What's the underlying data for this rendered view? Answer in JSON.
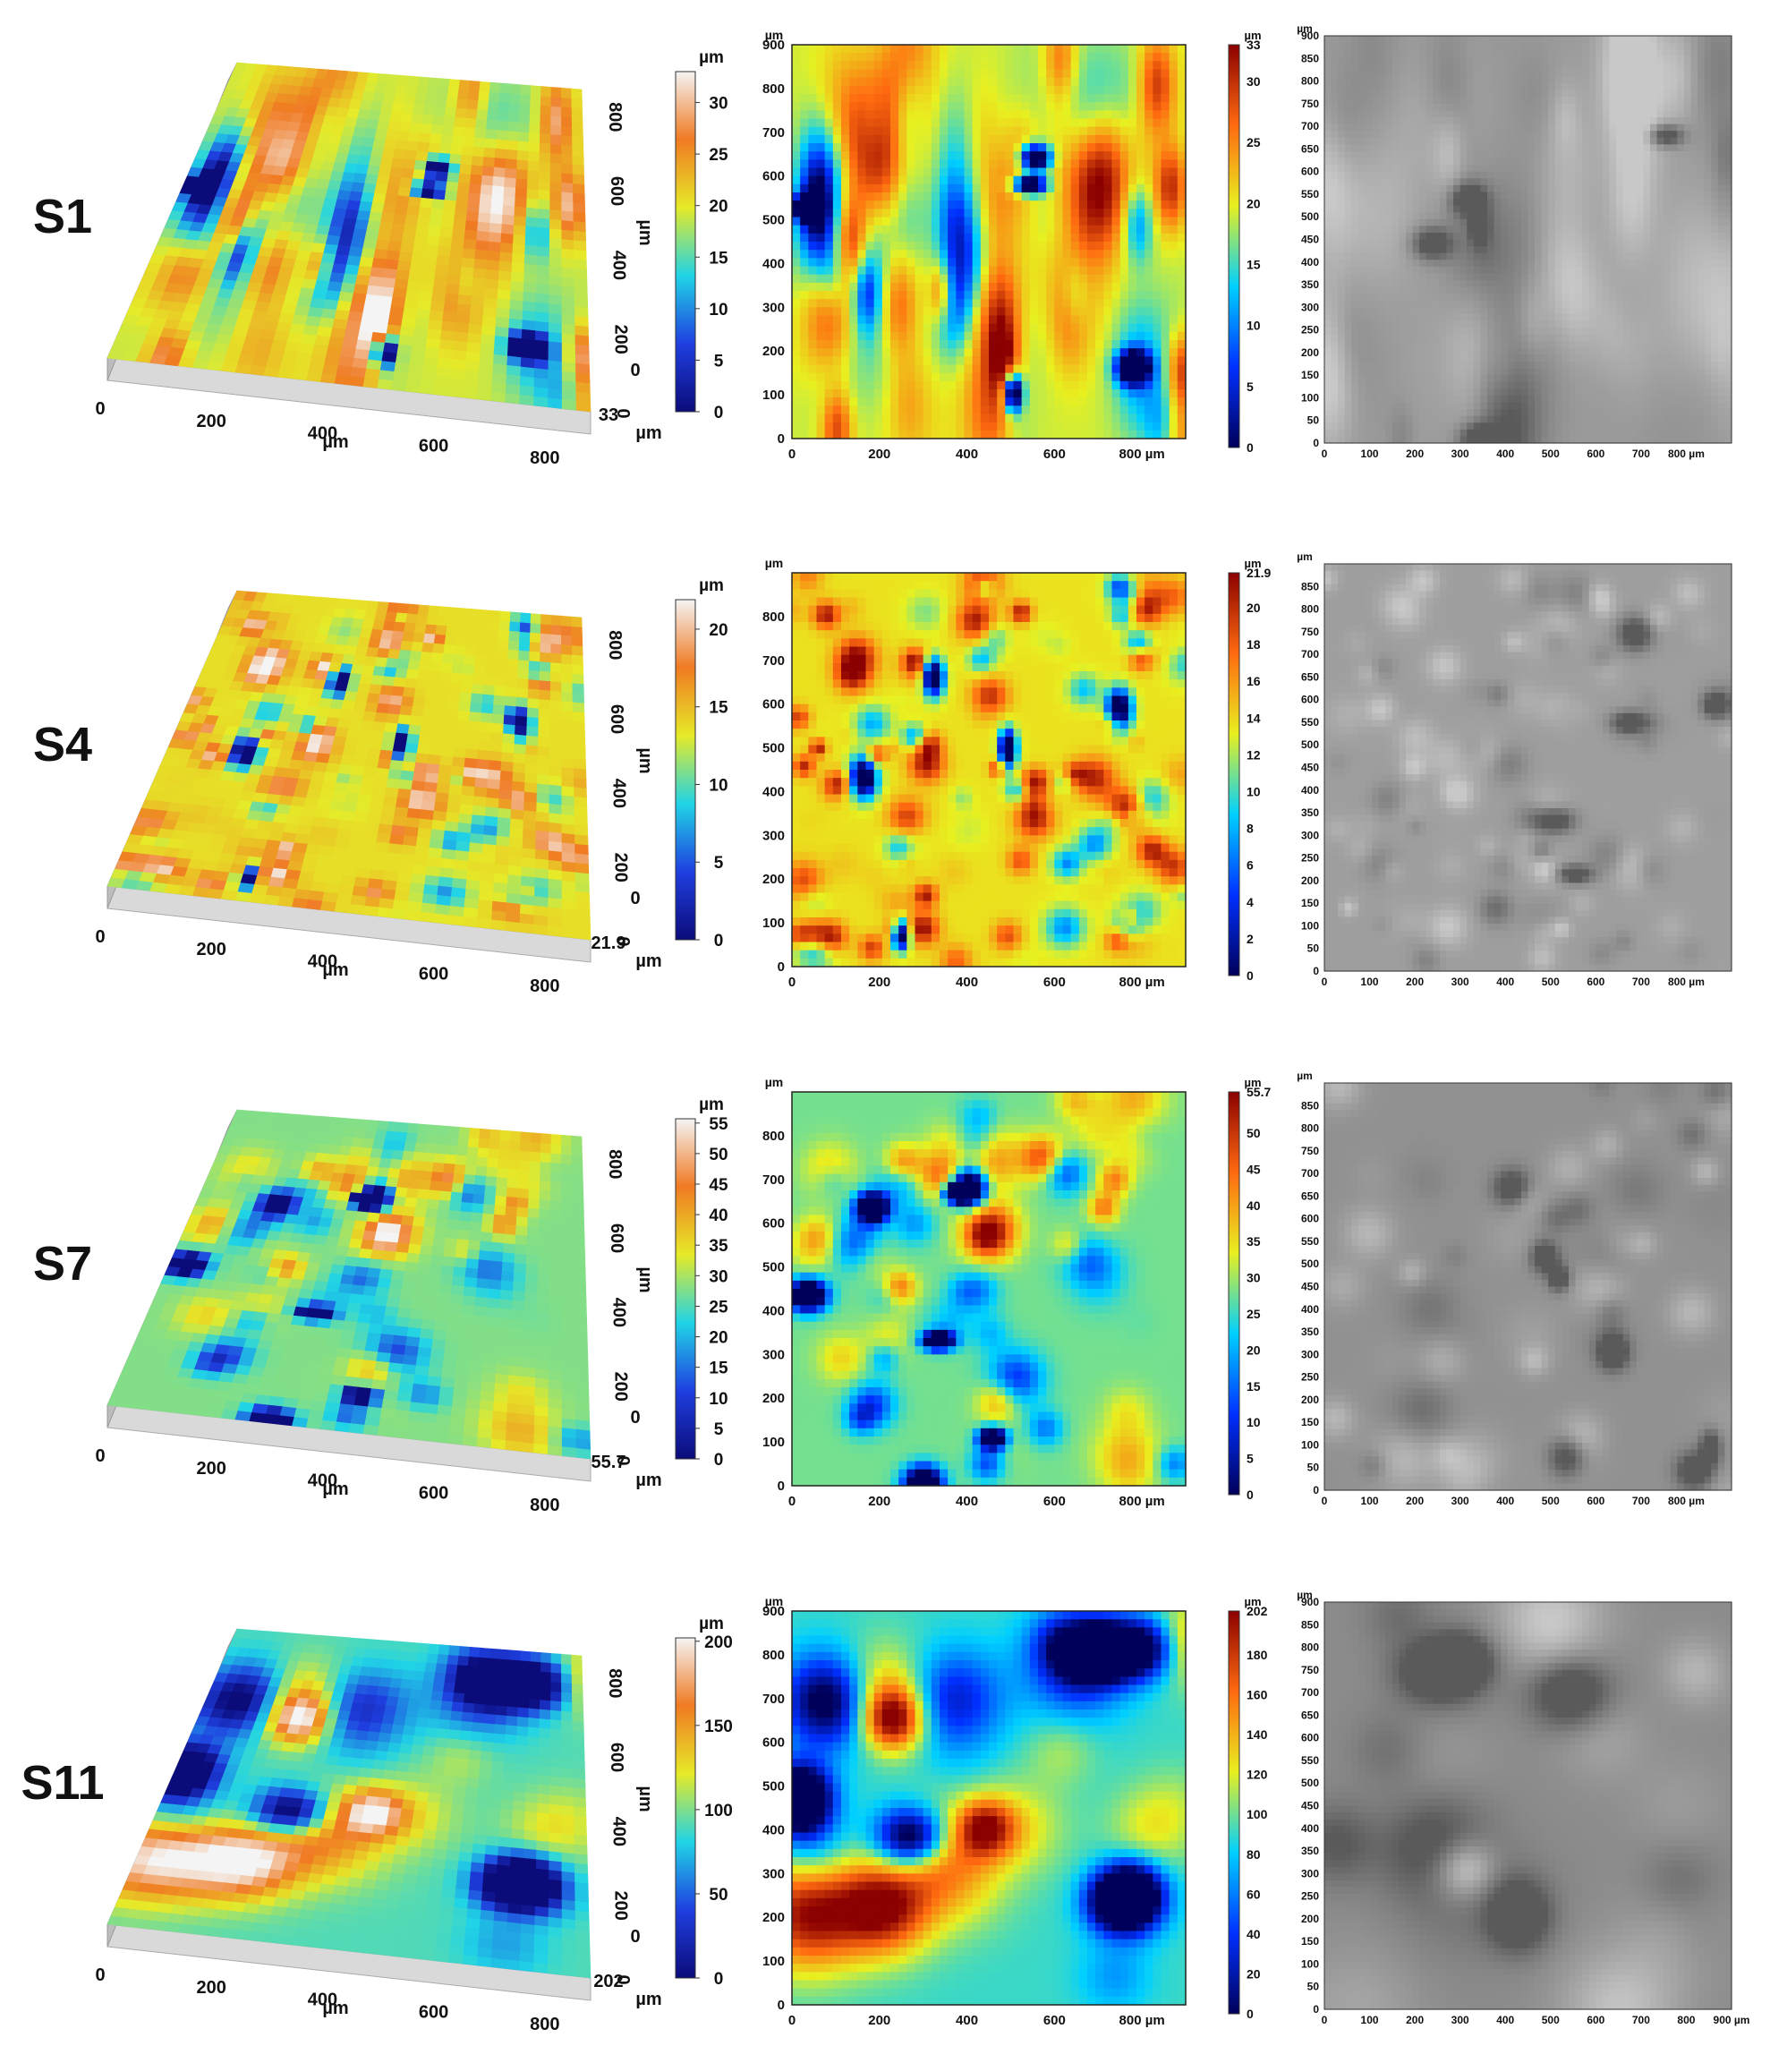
{
  "figure": {
    "rows": [
      {
        "sample": "S1",
        "zmax": 33,
        "zmax_label": "33",
        "cb3d_ticks": [
          "0",
          "5",
          "10",
          "15",
          "20",
          "25",
          "30"
        ],
        "cb2d_ticks": [
          "0",
          "5",
          "10",
          "15",
          "20",
          "25",
          "30",
          "33"
        ],
        "y_ticks_2d": [
          "0",
          "100",
          "200",
          "300",
          "400",
          "500",
          "600",
          "700",
          "800",
          "900"
        ],
        "x_ticks_2d": [
          "0",
          "200",
          "400",
          "600",
          "800 µm"
        ],
        "y_ticks_sem": [
          "0",
          "50",
          "100",
          "150",
          "200",
          "250",
          "300",
          "350",
          "400",
          "450",
          "500",
          "550",
          "600",
          "650",
          "700",
          "750",
          "800",
          "850",
          "900"
        ],
        "x_ticks_sem": [
          "0",
          "100",
          "200",
          "300",
          "400",
          "500",
          "600",
          "700",
          "800 µm"
        ],
        "theme": "striated"
      },
      {
        "sample": "S4",
        "zmax": 21.9,
        "zmax_label": "21.9",
        "cb3d_ticks": [
          "0",
          "5",
          "10",
          "15",
          "20"
        ],
        "cb2d_ticks": [
          "0",
          "2",
          "4",
          "6",
          "8",
          "10",
          "12",
          "14",
          "16",
          "18",
          "20",
          "21.9"
        ],
        "y_ticks_2d": [
          "0",
          "100",
          "200",
          "300",
          "400",
          "500",
          "600",
          "700",
          "800"
        ],
        "x_ticks_2d": [
          "0",
          "200",
          "400",
          "600",
          "800 µm"
        ],
        "y_ticks_sem": [
          "0",
          "50",
          "100",
          "150",
          "200",
          "250",
          "300",
          "350",
          "400",
          "450",
          "500",
          "550",
          "600",
          "650",
          "700",
          "750",
          "800",
          "850"
        ],
        "x_ticks_sem": [
          "0",
          "100",
          "200",
          "300",
          "400",
          "500",
          "600",
          "700",
          "800 µm"
        ],
        "theme": "fine"
      },
      {
        "sample": "S7",
        "zmax": 55.7,
        "zmax_label": "55.7",
        "cb3d_ticks": [
          "0",
          "5",
          "10",
          "15",
          "20",
          "25",
          "30",
          "35",
          "40",
          "45",
          "50",
          "55"
        ],
        "cb2d_ticks": [
          "0",
          "5",
          "10",
          "15",
          "20",
          "25",
          "30",
          "35",
          "40",
          "45",
          "50",
          "55.7"
        ],
        "y_ticks_2d": [
          "0",
          "100",
          "200",
          "300",
          "400",
          "500",
          "600",
          "700",
          "800"
        ],
        "x_ticks_2d": [
          "0",
          "200",
          "400",
          "600",
          "800 µm"
        ],
        "y_ticks_sem": [
          "0",
          "50",
          "100",
          "150",
          "200",
          "250",
          "300",
          "350",
          "400",
          "450",
          "500",
          "550",
          "600",
          "650",
          "700",
          "750",
          "800",
          "850"
        ],
        "x_ticks_sem": [
          "0",
          "100",
          "200",
          "300",
          "400",
          "500",
          "600",
          "700",
          "800 µm"
        ],
        "theme": "cells"
      },
      {
        "sample": "S11",
        "zmax": 202,
        "zmax_label": "202",
        "cb3d_ticks": [
          "0",
          "50",
          "100",
          "150",
          "200"
        ],
        "cb2d_ticks": [
          "0",
          "20",
          "40",
          "60",
          "80",
          "100",
          "120",
          "140",
          "160",
          "180",
          "202"
        ],
        "y_ticks_2d": [
          "0",
          "100",
          "200",
          "300",
          "400",
          "500",
          "600",
          "700",
          "800",
          "900"
        ],
        "x_ticks_2d": [
          "0",
          "200",
          "400",
          "600",
          "800 µm"
        ],
        "y_ticks_sem": [
          "0",
          "50",
          "100",
          "150",
          "200",
          "250",
          "300",
          "350",
          "400",
          "450",
          "500",
          "550",
          "600",
          "650",
          "700",
          "750",
          "800",
          "850",
          "900"
        ],
        "x_ticks_sem": [
          "0",
          "100",
          "200",
          "300",
          "400",
          "500",
          "600",
          "700",
          "800",
          "900 µm"
        ],
        "theme": "blobs"
      }
    ],
    "perspective": {
      "x_ticks": [
        "0",
        "200",
        "400",
        "600",
        "800"
      ],
      "y_ticks": [
        "0",
        "200",
        "400",
        "600",
        "800"
      ],
      "x_unit": "µm",
      "y_unit": "µm",
      "z_unit": "µm"
    },
    "unit_label": "µm"
  },
  "colors": {
    "jet_3d": [
      "#0b0b7a",
      "#1f3fe0",
      "#20d4e6",
      "#e6ea28",
      "#f07a22",
      "#f4f4f4"
    ],
    "jet_2d": [
      "#00005a",
      "#0030ff",
      "#00d0ff",
      "#e8f020",
      "#ff6a10",
      "#8b0000"
    ],
    "sem_light": "#c8c8c8",
    "sem_dark": "#555555"
  }
}
